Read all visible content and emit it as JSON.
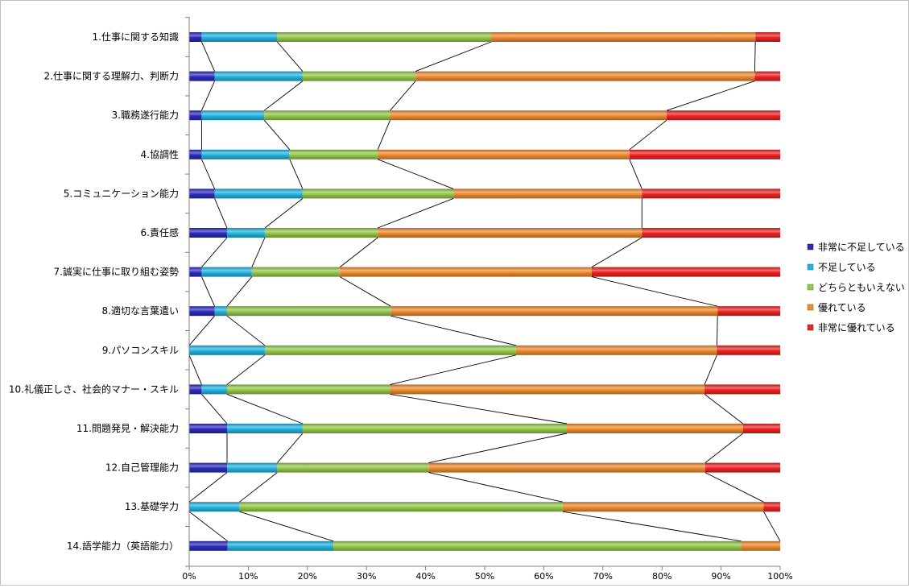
{
  "chart_data": {
    "type": "bar",
    "orientation": "horizontal",
    "stacking": "percent",
    "categories": [
      "1.仕事に関する知識",
      "2.仕事に関する理解力、判断力",
      "3.職務遂行能力",
      "4.協調性",
      "5.コミュニケーション能力",
      "6.責任感",
      "7.誠実に仕事に取り組む姿勢",
      "8.適切な言葉遣い",
      "9.パソコンスキル",
      "10.礼儀正しさ、社会的マナー・スキル",
      "11.問題発見・解決能力",
      "12.自己管理能力",
      "13.基礎学力",
      "14.語学能力（英語能力）"
    ],
    "series": [
      {
        "name": "非常に不足している",
        "color": "#2b2bbf",
        "values": [
          2.1,
          4.3,
          2.1,
          2.1,
          4.3,
          6.4,
          2.1,
          4.3,
          0,
          2.1,
          6.4,
          6.4,
          0,
          6.5
        ]
      },
      {
        "name": "不足している",
        "color": "#22b4e0",
        "values": [
          12.8,
          14.9,
          10.6,
          14.9,
          14.9,
          6.4,
          8.5,
          2.1,
          12.8,
          4.3,
          12.8,
          8.5,
          8.5,
          17.9
        ]
      },
      {
        "name": "どちらともいえない",
        "color": "#94c84a",
        "values": [
          36.2,
          19.1,
          21.3,
          14.9,
          25.5,
          19.1,
          14.9,
          27.7,
          42.5,
          27.6,
          44.7,
          25.6,
          54.7,
          69.0
        ]
      },
      {
        "name": "優れている",
        "color": "#ee8a2e",
        "values": [
          44.7,
          57.4,
          46.8,
          42.6,
          31.9,
          44.7,
          42.6,
          55.3,
          34.0,
          53.2,
          29.8,
          46.8,
          34.0,
          6.6
        ]
      },
      {
        "name": "非常に優れている",
        "color": "#ee2222",
        "values": [
          4.2,
          4.3,
          19.2,
          25.5,
          23.4,
          23.4,
          31.9,
          10.6,
          10.7,
          12.8,
          6.3,
          12.7,
          2.8,
          0
        ]
      }
    ],
    "xlim": [
      0,
      100
    ],
    "x_ticks": [
      "0%",
      "10%",
      "20%",
      "30%",
      "40%",
      "50%",
      "60%",
      "70%",
      "80%",
      "90%",
      "100%"
    ],
    "series_lines": true,
    "grid": false,
    "legend": "right",
    "title": "",
    "xlabel": "",
    "ylabel": ""
  }
}
